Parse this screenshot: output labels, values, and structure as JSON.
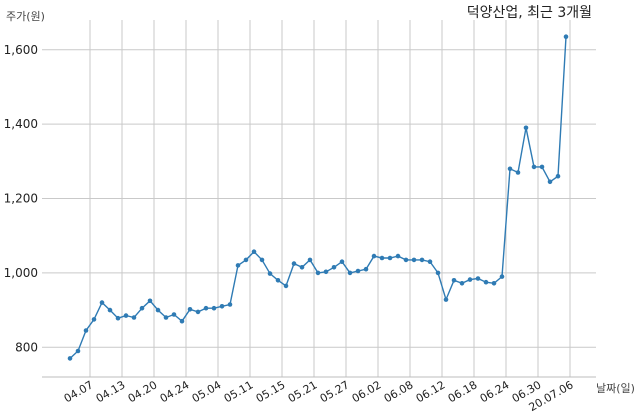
{
  "chart_data": {
    "type": "line",
    "title": "덕양산업, 최근 3개월",
    "xlabel": "날짜(일)",
    "ylabel": "주가(원)",
    "ylim": [
      720,
      1680
    ],
    "yticks": [
      800,
      1000,
      1200,
      1400,
      1600
    ],
    "ytick_labels": [
      "800",
      "1,000",
      "1,200",
      "1,400",
      "1,600"
    ],
    "xtick_labels": [
      "04.07",
      "04.13",
      "04.20",
      "04.24",
      "05.04",
      "05.11",
      "05.15",
      "05.21",
      "05.27",
      "06.02",
      "06.08",
      "06.12",
      "06.18",
      "06.24",
      "06.30",
      "20.07.06"
    ],
    "xtick_positions": [
      2.5,
      6.5,
      10.5,
      14.5,
      18.5,
      22.5,
      26.5,
      30.5,
      34.5,
      38.5,
      42.5,
      46.5,
      50.5,
      54.5,
      58.5,
      62.5
    ],
    "grid": true,
    "line_color": "#2f7bb4",
    "series": [
      {
        "values": [
          770,
          790,
          845,
          875,
          920,
          900,
          878,
          885,
          880,
          905,
          925,
          900,
          880,
          888,
          870,
          902,
          895,
          905,
          905,
          910,
          915,
          1020,
          1035,
          1057,
          1035,
          998,
          980,
          965,
          1025,
          1015,
          1035,
          1000,
          1003,
          1015,
          1030,
          1000,
          1005,
          1010,
          1045,
          1040,
          1040,
          1045,
          1035,
          1035,
          1035,
          1030,
          1000,
          928,
          980,
          972,
          982,
          985,
          975,
          972,
          990,
          1280,
          1270,
          1390,
          1285,
          1285,
          1245,
          1260,
          1635
        ]
      }
    ]
  }
}
